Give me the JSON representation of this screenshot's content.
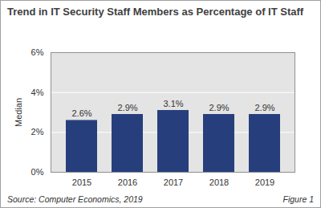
{
  "chart_data": {
    "type": "bar",
    "title": "Trend in IT Security Staff Members as Percentage of IT Staff",
    "y_label": "Median",
    "categories": [
      "2015",
      "2016",
      "2017",
      "2018",
      "2019"
    ],
    "values": [
      2.6,
      2.9,
      3.1,
      2.9,
      2.9
    ],
    "value_labels": [
      "2.6%",
      "2.9%",
      "3.1%",
      "2.9%",
      "2.9%"
    ],
    "color": "#263f7c",
    "ylim": [
      0,
      6
    ],
    "yticks": [
      {
        "value": 0,
        "label": "0%"
      },
      {
        "value": 2,
        "label": "2%"
      },
      {
        "value": 4,
        "label": "4%"
      },
      {
        "value": 6,
        "label": "6%"
      }
    ],
    "grid": true,
    "data_labels": true,
    "source": "Source: Computer Economics, 2019",
    "figure": "Figure 1"
  }
}
